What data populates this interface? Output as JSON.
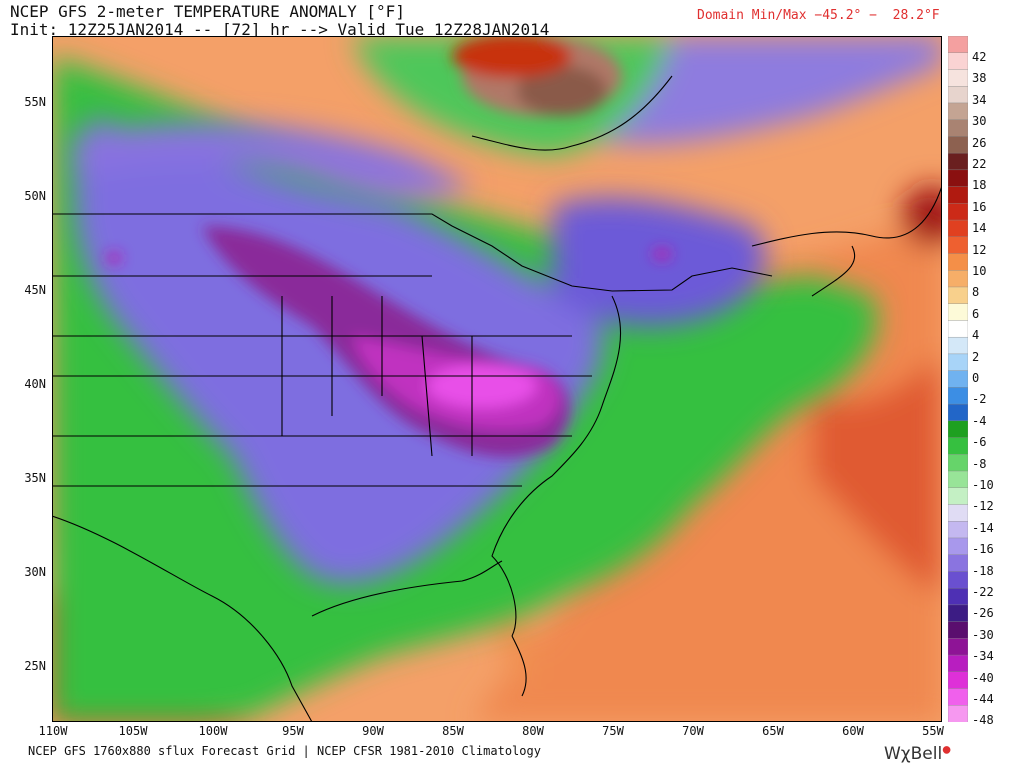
{
  "header": {
    "title_line1": "NCEP GFS 2-meter TEMPERATURE ANOMALY [°F]",
    "title_line2": "Init: 12Z25JAN2014 -- [72] hr --> Valid Tue 12Z28JAN2014",
    "domain_minmax": "Domain Min/Max −45.2° −  28.2°F"
  },
  "footer": {
    "source": "NCEP GFS 1760x880 sflux Forecast Grid | NCEP CFSR 1981-2010 Climatology",
    "logo": "WχBell"
  },
  "map": {
    "lat_labels": [
      "55N",
      "50N",
      "45N",
      "40N",
      "35N",
      "30N",
      "25N"
    ],
    "lon_labels": [
      "110W",
      "105W",
      "100W",
      "95W",
      "90W",
      "85W",
      "80W",
      "75W",
      "70W",
      "65W",
      "60W",
      "55W"
    ]
  },
  "legend": {
    "labels": [
      "42",
      "38",
      "34",
      "30",
      "26",
      "22",
      "18",
      "16",
      "14",
      "12",
      "10",
      "8",
      "6",
      "4",
      "2",
      "0",
      "-2",
      "-4",
      "-6",
      "-8",
      "-10",
      "-12",
      "-14",
      "-16",
      "-18",
      "-22",
      "-26",
      "-30",
      "-34",
      "-40",
      "-44",
      "-48"
    ],
    "colors": [
      "#f4a0a0",
      "#fad3d3",
      "#f6e3de",
      "#e7d4cd",
      "#c4a493",
      "#a98372",
      "#8d6150",
      "#6a1f1f",
      "#8a1010",
      "#b01a10",
      "#cc2a18",
      "#e04020",
      "#ee6030",
      "#f48f48",
      "#f6ae68",
      "#f8d08c",
      "#fdfad8",
      "#ffffff",
      "#d4e8f8",
      "#a8d4f8",
      "#70b2f0",
      "#3c8ee4",
      "#2266c8",
      "#1ea020",
      "#36c040",
      "#66d46a",
      "#98e498",
      "#c4f0c4",
      "#e0dcf4",
      "#c4b8f0",
      "#a898ec",
      "#8a74e0",
      "#6a50d0",
      "#4e30b4",
      "#3c1c84",
      "#5a0e6e",
      "#8e1496",
      "#b81ec0",
      "#de30d8",
      "#f060ec",
      "#f698f0"
    ]
  }
}
